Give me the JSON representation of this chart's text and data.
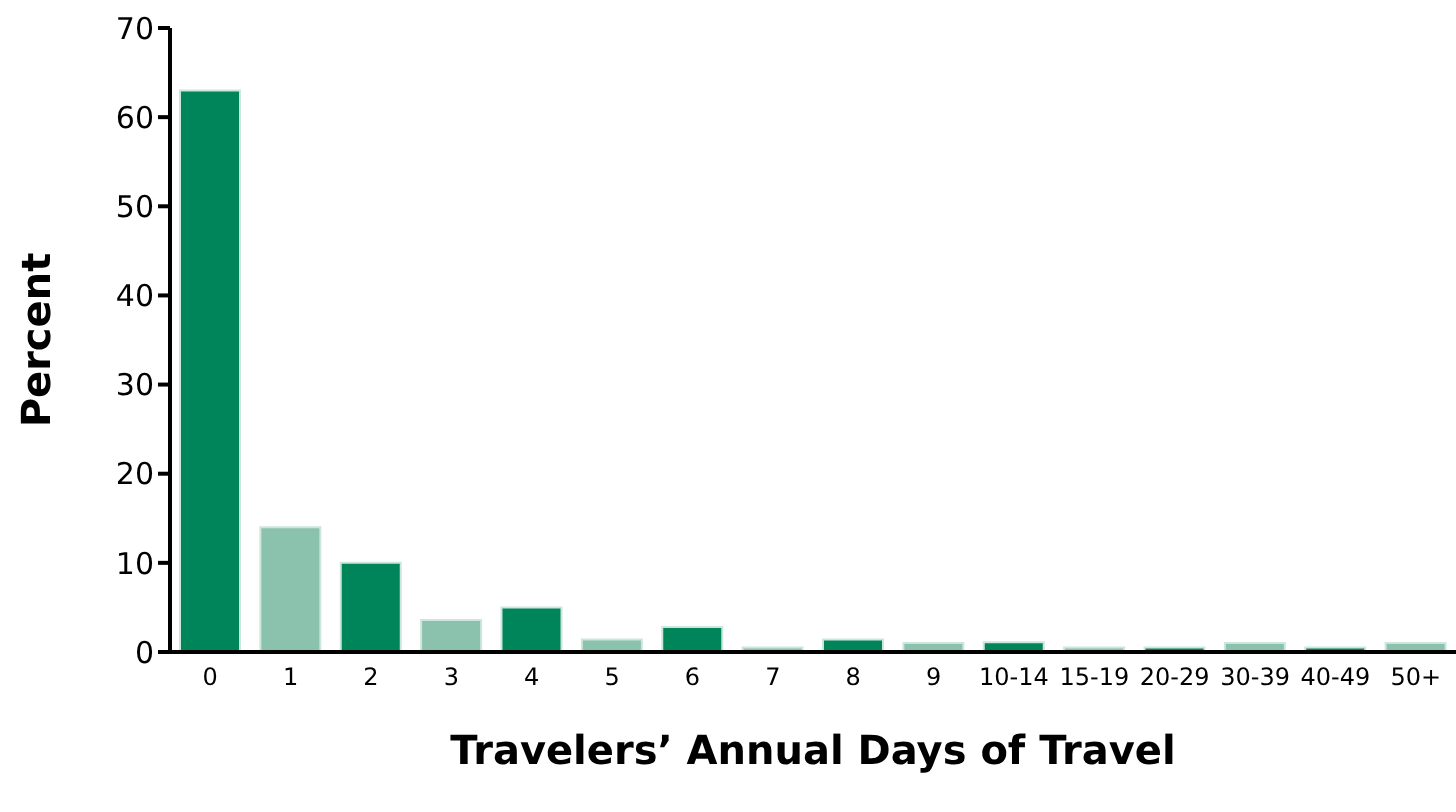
{
  "chart_data": {
    "type": "bar",
    "xlabel": "Travelers’ Annual Days of Travel",
    "ylabel": "Percent",
    "categories": [
      "0",
      "1",
      "2",
      "3",
      "4",
      "5",
      "6",
      "7",
      "8",
      "9",
      "10-14",
      "15-19",
      "20-29",
      "30-39",
      "40-49",
      "50+"
    ],
    "values": [
      63,
      14,
      10,
      3.6,
      5,
      1.4,
      2.8,
      0.5,
      1.4,
      1,
      1.1,
      0.5,
      0.5,
      1,
      0.5,
      1
    ],
    "colors": [
      "#00855a",
      "#8bc2ad",
      "#00855a",
      "#8bc2ad",
      "#00855a",
      "#8bc2ad",
      "#00855a",
      "#8bc2ad",
      "#00855a",
      "#8bc2ad",
      "#00855a",
      "#8bc2ad",
      "#00855a",
      "#8bc2ad",
      "#00855a",
      "#8bc2ad"
    ],
    "ylim": [
      0,
      70
    ],
    "yticks": [
      0,
      10,
      20,
      30,
      40,
      50,
      60,
      70
    ],
    "grid": false,
    "legend": false
  }
}
